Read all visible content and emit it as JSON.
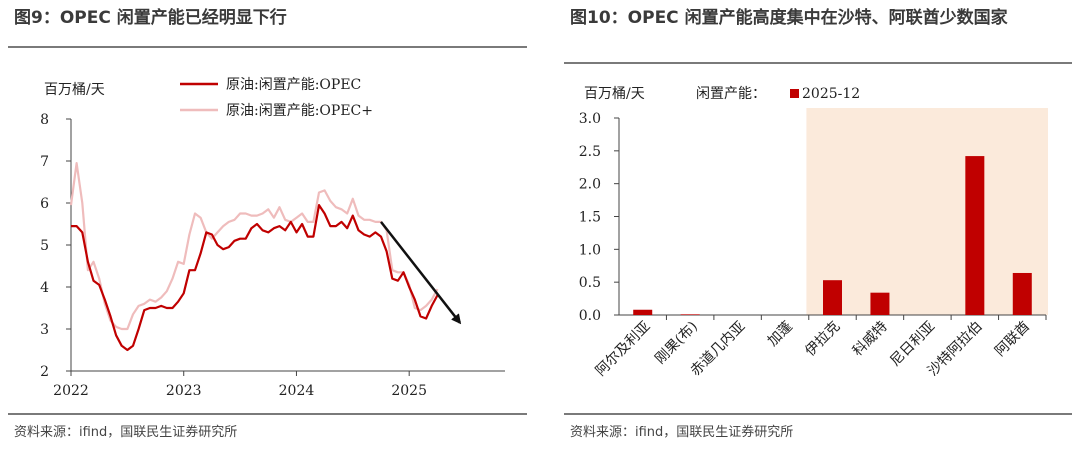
{
  "panels": [
    {
      "title": "图9：OPEC 闲置产能已经明显下行",
      "source": "资料来源：ifind，国联民生证券研究所"
    },
    {
      "title": "图10：OPEC 闲置产能高度集中在沙特、阿联酋少数国家",
      "source": "资料来源：ifind，国联民生证券研究所"
    }
  ],
  "chart_data": [
    {
      "type": "line",
      "title": "OPEC 闲置产能已经明显下行",
      "ylabel": "百万桶/天",
      "ylim": [
        2,
        8
      ],
      "yticks": [
        "2",
        "3",
        "4",
        "5",
        "6",
        "7",
        "8"
      ],
      "xlim": [
        2022.0,
        2025.85
      ],
      "xticks": [
        "2022",
        "2023",
        "2024",
        "2025"
      ],
      "grid": false,
      "legend": "top-center",
      "colors": {
        "opec": "#c00000",
        "opec_plus": "#efbcbc",
        "arrow": "#111111"
      },
      "series": [
        {
          "name": "原油:闲置产能:OPEC",
          "x": [
            2022.0,
            2022.05,
            2022.1,
            2022.15,
            2022.2,
            2022.25,
            2022.3,
            2022.35,
            2022.4,
            2022.45,
            2022.5,
            2022.55,
            2022.6,
            2022.65,
            2022.7,
            2022.75,
            2022.8,
            2022.85,
            2022.9,
            2022.95,
            2023.0,
            2023.05,
            2023.1,
            2023.15,
            2023.2,
            2023.25,
            2023.3,
            2023.35,
            2023.4,
            2023.45,
            2023.5,
            2023.55,
            2023.6,
            2023.65,
            2023.7,
            2023.75,
            2023.8,
            2023.85,
            2023.9,
            2023.95,
            2024.0,
            2024.05,
            2024.1,
            2024.15,
            2024.2,
            2024.25,
            2024.3,
            2024.35,
            2024.4,
            2024.45,
            2024.5,
            2024.55,
            2024.6,
            2024.65,
            2024.7,
            2024.75,
            2024.8,
            2024.85,
            2024.9,
            2024.95,
            2025.0,
            2025.05,
            2025.1,
            2025.15,
            2025.2,
            2025.25,
            2025.3,
            2025.35,
            2025.4,
            2025.45,
            2025.5,
            2025.55,
            2025.6,
            2025.65,
            2025.7,
            2025.75,
            2025.8,
            2025.85
          ],
          "values": [
            5.45,
            5.45,
            5.3,
            4.6,
            4.15,
            4.05,
            3.7,
            3.3,
            2.85,
            2.6,
            2.5,
            2.6,
            3.0,
            3.45,
            3.5,
            3.5,
            3.55,
            3.5,
            3.5,
            3.65,
            3.85,
            4.4,
            4.4,
            4.8,
            5.3,
            5.25,
            5.0,
            4.9,
            4.95,
            5.1,
            5.15,
            5.15,
            5.4,
            5.5,
            5.35,
            5.3,
            5.4,
            5.45,
            5.35,
            5.55,
            5.3,
            5.5,
            5.2,
            5.2,
            5.95,
            5.75,
            5.45,
            5.45,
            5.55,
            5.4,
            5.7,
            5.35,
            5.25,
            5.2,
            5.3,
            5.2,
            4.85,
            4.2,
            4.15,
            4.35,
            4.0,
            3.7,
            3.3,
            3.25,
            3.55,
            3.8,
            null,
            null,
            null,
            null,
            null,
            null,
            null,
            null,
            null,
            null,
            null,
            null
          ]
        },
        {
          "name": "原油:闲置产能:OPEC+",
          "x": [
            2022.0,
            2022.05,
            2022.1,
            2022.15,
            2022.2,
            2022.25,
            2022.3,
            2022.35,
            2022.4,
            2022.45,
            2022.5,
            2022.55,
            2022.6,
            2022.65,
            2022.7,
            2022.75,
            2022.8,
            2022.85,
            2022.9,
            2022.95,
            2023.0,
            2023.05,
            2023.1,
            2023.15,
            2023.2,
            2023.25,
            2023.3,
            2023.35,
            2023.4,
            2023.45,
            2023.5,
            2023.55,
            2023.6,
            2023.65,
            2023.7,
            2023.75,
            2023.8,
            2023.85,
            2023.9,
            2023.95,
            2024.0,
            2024.05,
            2024.1,
            2024.15,
            2024.2,
            2024.25,
            2024.3,
            2024.35,
            2024.4,
            2024.45,
            2024.5,
            2024.55,
            2024.6,
            2024.65,
            2024.7,
            2024.75,
            2024.8,
            2024.85,
            2024.9,
            2024.95,
            2025.0,
            2025.05,
            2025.1,
            2025.15,
            2025.2,
            2025.25,
            2025.3,
            2025.35,
            2025.4,
            2025.45,
            2025.5,
            2025.55,
            2025.6,
            2025.65,
            2025.7,
            2025.75,
            2025.8,
            2025.85
          ],
          "values": [
            5.95,
            6.95,
            6.0,
            4.4,
            4.6,
            4.2,
            3.6,
            3.2,
            3.05,
            3.0,
            3.0,
            3.35,
            3.55,
            3.6,
            3.7,
            3.65,
            3.75,
            3.9,
            4.2,
            4.6,
            4.55,
            5.25,
            5.75,
            5.65,
            5.3,
            5.15,
            5.3,
            5.45,
            5.55,
            5.6,
            5.75,
            5.75,
            5.7,
            5.7,
            5.75,
            5.85,
            5.65,
            5.9,
            5.6,
            5.55,
            5.65,
            5.75,
            5.55,
            5.55,
            6.25,
            6.3,
            6.05,
            5.9,
            5.85,
            5.75,
            6.1,
            5.7,
            5.6,
            5.6,
            5.55,
            5.55,
            5.35,
            4.4,
            4.35,
            4.35,
            4.05,
            3.5,
            3.45,
            3.55,
            3.7,
            3.95,
            null,
            null,
            null,
            null,
            null,
            null,
            null,
            null,
            null,
            null,
            null,
            null
          ]
        }
      ],
      "annotations": [
        {
          "type": "arrow",
          "from": [
            2024.75,
            5.55
          ],
          "to": [
            2025.45,
            3.15
          ]
        }
      ]
    },
    {
      "type": "bar",
      "title": "OPEC 闲置产能高度集中在沙特、阿联酋少数国家",
      "ylabel": "百万桶/天",
      "ylim": [
        0,
        3
      ],
      "yticks": [
        "0.0",
        "0.5",
        "1.0",
        "1.5",
        "2.0",
        "2.5",
        "3.0"
      ],
      "grid": false,
      "legend_title": "闲置产能：",
      "legend": "top-left",
      "series": [
        {
          "name": "2025-12",
          "color": "#c00000",
          "values": [
            0.08,
            0.01,
            0.0,
            0.0,
            0.53,
            0.34,
            0.0,
            2.42,
            0.64
          ]
        }
      ],
      "categories": [
        "阿尔及利亚",
        "刚果(布)",
        "赤道几内亚",
        "加蓬",
        "伊拉克",
        "科威特",
        "尼日利亚",
        "沙特阿拉伯",
        "阿联酋"
      ],
      "highlight": {
        "from_category": 4,
        "to_category": 8,
        "color": "#fbeadb"
      }
    }
  ]
}
